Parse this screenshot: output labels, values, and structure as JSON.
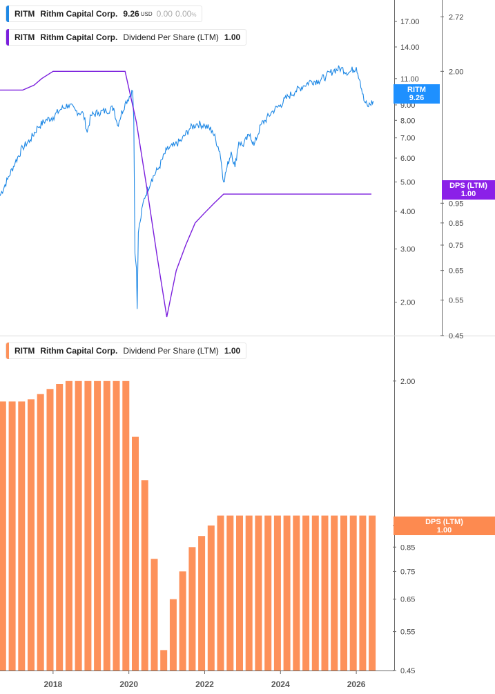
{
  "colors": {
    "price": "#1e88e5",
    "dps_line": "#7b1fdd",
    "bars": "#fd915a",
    "axis": "#666666",
    "grid": "#d9d9d9",
    "badge_price": "#1e90ff",
    "badge_dps": "#8b20e8",
    "badge_bars": "#fd8a50"
  },
  "legend_top": {
    "ticker": "RITM",
    "name": "Rithm Capital Corp.",
    "value": "9.26",
    "unit": "USD",
    "change": "0.00",
    "change_pct": "0.00",
    "pct_sign": "%"
  },
  "legend_dps": {
    "ticker": "RITM",
    "name": "Rithm Capital Corp.",
    "metric": "Dividend Per Share (LTM)",
    "value": "1.00"
  },
  "legend_bottom": {
    "ticker": "RITM",
    "name": "Rithm Capital Corp.",
    "metric": "Dividend Per Share (LTM)",
    "value": "1.00"
  },
  "badges": {
    "price": {
      "label": "RITM",
      "value": "9.26"
    },
    "dps": {
      "label": "DPS (LTM)",
      "value": "1.00"
    },
    "bars": {
      "label": "DPS (LTM)",
      "value": "1.00"
    }
  },
  "chart_data": [
    {
      "type": "line",
      "scale": "log",
      "series": [
        {
          "name": "RITM",
          "axis": "left",
          "ylim": [
            1.6,
            19
          ],
          "ticks": [
            "17.00",
            "14.00",
            "11.00",
            "9.00",
            "8.00",
            "7.00",
            "6.00",
            "5.00",
            "4.00",
            "3.00",
            "2.00"
          ],
          "x": [
            2016.6,
            2016.8,
            2017.0,
            2017.2,
            2017.4,
            2017.6,
            2017.8,
            2018.0,
            2018.2,
            2018.4,
            2018.6,
            2018.8,
            2018.9,
            2019.0,
            2019.2,
            2019.4,
            2019.6,
            2019.7,
            2019.9,
            2020.1,
            2020.13,
            2020.16,
            2020.2,
            2020.22,
            2020.25,
            2020.3,
            2020.4,
            2020.6,
            2020.8,
            2021.0,
            2021.2,
            2021.4,
            2021.6,
            2021.8,
            2022.0,
            2022.2,
            2022.4,
            2022.5,
            2022.7,
            2022.8,
            2022.9,
            2023.0,
            2023.2,
            2023.3,
            2023.5,
            2023.6,
            2023.8,
            2024.0,
            2024.2,
            2024.4,
            2024.6,
            2024.8,
            2025.0,
            2025.2,
            2025.4,
            2025.6,
            2025.8,
            2026.0,
            2026.1,
            2026.2,
            2026.3,
            2026.45
          ],
          "values": [
            4.5,
            5.1,
            5.8,
            6.5,
            6.9,
            7.6,
            8.0,
            8.2,
            8.7,
            9.0,
            8.6,
            8.4,
            7.3,
            8.3,
            8.5,
            8.6,
            8.8,
            7.7,
            9.1,
            10.0,
            8.0,
            2.9,
            2.6,
            1.9,
            3.4,
            3.7,
            4.4,
            5.1,
            5.6,
            6.4,
            6.6,
            6.9,
            7.5,
            7.8,
            7.7,
            7.4,
            6.3,
            5.0,
            6.3,
            5.6,
            6.8,
            6.6,
            7.2,
            6.6,
            7.8,
            8.0,
            8.6,
            9.0,
            9.6,
            10.0,
            10.4,
            10.8,
            10.8,
            11.2,
            11.7,
            11.9,
            11.5,
            12.0,
            10.8,
            9.3,
            8.9,
            9.26
          ]
        },
        {
          "name": "DPS (LTM)",
          "axis": "right",
          "ylim": [
            0.45,
            2.9
          ],
          "ticks": [
            "2.72",
            "2.00",
            "0.95",
            "0.85",
            "0.75",
            "0.65",
            "0.55",
            "0.45"
          ],
          "x": [
            2016.6,
            2017.0,
            2017.2,
            2017.5,
            2017.7,
            2018.0,
            2018.2,
            2019.0,
            2019.5,
            2019.9,
            2020.2,
            2020.5,
            2020.75,
            2021.0,
            2021.25,
            2021.5,
            2021.75,
            2022.0,
            2022.25,
            2022.5,
            2023.0,
            2024.0,
            2025.0,
            2026.0,
            2026.4
          ],
          "values": [
            1.8,
            1.8,
            1.8,
            1.85,
            1.92,
            2.0,
            2.0,
            2.0,
            2.0,
            2.0,
            1.5,
            1.0,
            0.7,
            0.5,
            0.65,
            0.75,
            0.85,
            0.9,
            0.95,
            1.0,
            1.0,
            1.0,
            1.0,
            1.0,
            1.0
          ]
        }
      ],
      "xlim": [
        2016.6,
        2026.8
      ]
    },
    {
      "type": "bar",
      "scale": "log",
      "ylim": [
        0.45,
        2.2
      ],
      "ticks": [
        "2.00",
        "0.95",
        "0.85",
        "0.75",
        "0.65",
        "0.55",
        "0.45"
      ],
      "x_ticks": [
        "2018",
        "2020",
        "2022",
        "2024",
        "2026"
      ],
      "x": [
        2016.67,
        2016.92,
        2017.17,
        2017.42,
        2017.67,
        2017.92,
        2018.17,
        2018.42,
        2018.67,
        2018.92,
        2019.17,
        2019.42,
        2019.67,
        2019.92,
        2020.17,
        2020.42,
        2020.67,
        2020.92,
        2021.17,
        2021.42,
        2021.67,
        2021.92,
        2022.17,
        2022.42,
        2022.67,
        2022.92,
        2023.17,
        2023.42,
        2023.67,
        2023.92,
        2024.17,
        2024.42,
        2024.67,
        2024.92,
        2025.17,
        2025.42,
        2025.67,
        2025.92,
        2026.17,
        2026.42
      ],
      "values": [
        1.8,
        1.8,
        1.8,
        1.82,
        1.87,
        1.92,
        1.97,
        2.0,
        2.0,
        2.0,
        2.0,
        2.0,
        2.0,
        2.0,
        1.5,
        1.2,
        0.8,
        0.5,
        0.65,
        0.75,
        0.85,
        0.9,
        0.95,
        1.0,
        1.0,
        1.0,
        1.0,
        1.0,
        1.0,
        1.0,
        1.0,
        1.0,
        1.0,
        1.0,
        1.0,
        1.0,
        1.0,
        1.0,
        1.0,
        1.0
      ],
      "series_name": "DPS (LTM)",
      "xlim": [
        2016.6,
        2026.8
      ]
    }
  ]
}
